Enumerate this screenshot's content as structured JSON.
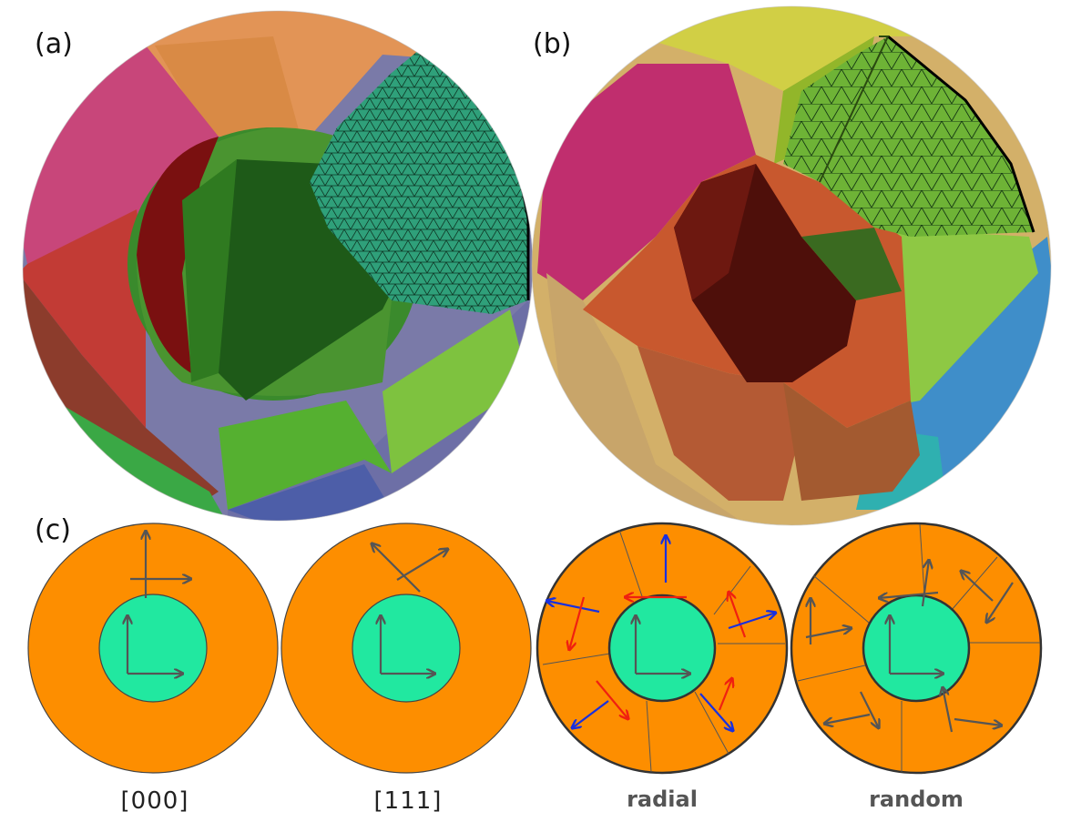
{
  "panel_labels": {
    "a": "(a)",
    "b": "(b)",
    "c": "(c)"
  },
  "captions": {
    "c1": "[000]",
    "c2": "[111]",
    "c3": "radial",
    "c4": "random"
  },
  "colors": {
    "shell": "#fd8e00",
    "core": "#21e8a0",
    "arrow_gray": "#555555",
    "arrow_red": "#f02010",
    "arrow_blue": "#1830e0",
    "outline": "#222222"
  }
}
